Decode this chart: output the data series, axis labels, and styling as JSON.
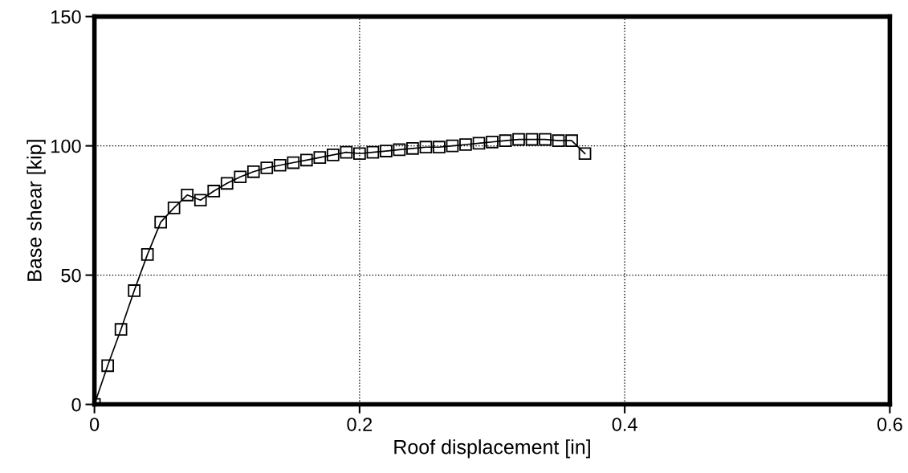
{
  "chart_data": {
    "type": "line",
    "xlabel": "Roof displacement [in]",
    "ylabel": "Base shear [kip]",
    "x": [
      0,
      0.01,
      0.02,
      0.03,
      0.04,
      0.05,
      0.06,
      0.07,
      0.08,
      0.09,
      0.1,
      0.11,
      0.12,
      0.13,
      0.14,
      0.15,
      0.16,
      0.17,
      0.18,
      0.19,
      0.2,
      0.21,
      0.22,
      0.23,
      0.24,
      0.25,
      0.26,
      0.27,
      0.28,
      0.29,
      0.3,
      0.31,
      0.32,
      0.33,
      0.34,
      0.35,
      0.36,
      0.37
    ],
    "series": [
      {
        "color": "#000000",
        "values": [
          0,
          15,
          29,
          44,
          58,
          70.5,
          76,
          81,
          79,
          82.5,
          85.5,
          88,
          90,
          91.5,
          92.5,
          93.5,
          94.5,
          95.5,
          96.5,
          97.5,
          97,
          97.5,
          98,
          98.5,
          99,
          99.5,
          99.5,
          100,
          100.5,
          101,
          101.5,
          102,
          102.5,
          102.5,
          102.5,
          102,
          102,
          97
        ]
      }
    ],
    "xlim": [
      0,
      0.6
    ],
    "xticks": [
      0,
      0.2,
      0.4,
      0.6
    ],
    "ylim": [
      0,
      150
    ],
    "yticks": [
      0,
      50,
      100,
      150
    ],
    "grid": true,
    "marker": "square",
    "line_style": "solid",
    "legend": false
  }
}
